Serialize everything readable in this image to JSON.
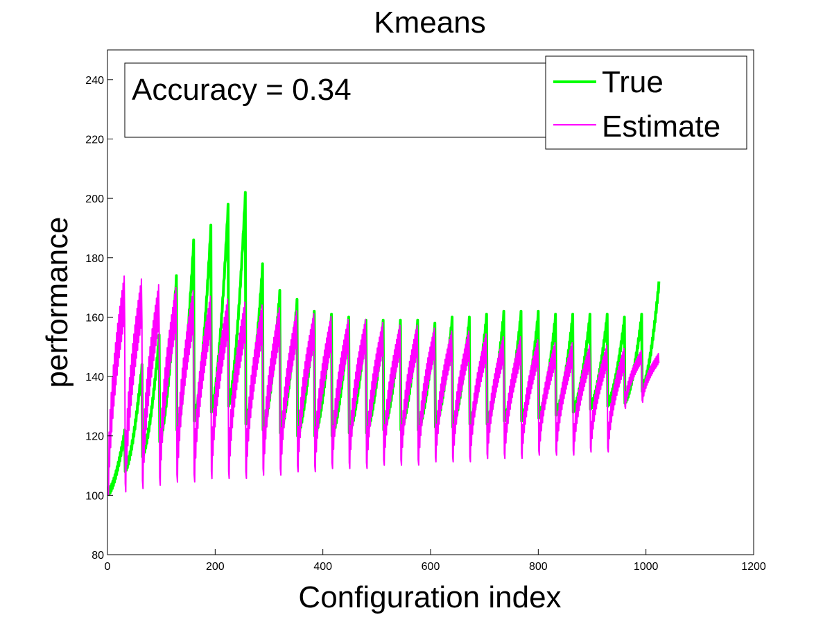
{
  "chart_data": {
    "type": "line",
    "title": "Kmeans",
    "xlabel": "Configuration index",
    "ylabel": "performance",
    "xlim": [
      0,
      1200
    ],
    "ylim": [
      80,
      250
    ],
    "xticks": [
      0,
      200,
      400,
      600,
      800,
      1000,
      1200
    ],
    "yticks": [
      80,
      100,
      120,
      140,
      160,
      180,
      200,
      220,
      240
    ],
    "grid": false,
    "legend_position": "top-right",
    "annotation": "Accuracy = 0.34",
    "n_points": 1024,
    "block_size": 32,
    "series": [
      {
        "name": "True",
        "color": "#00ff00",
        "block_peaks": [
          120,
          142,
          152,
          172,
          184,
          189,
          196,
          200,
          176,
          167,
          164,
          160,
          159,
          158,
          157,
          157,
          157,
          157,
          156,
          158,
          158,
          159,
          160,
          160,
          160,
          159,
          159,
          159,
          159,
          158,
          159,
          170
        ],
        "block_troughs": [
          100,
          108,
          113,
          118,
          122,
          125,
          128,
          130,
          124,
          122,
          121,
          120,
          120,
          120,
          121,
          121,
          122,
          122,
          122,
          123,
          123,
          124,
          124,
          125,
          125,
          126,
          127,
          128,
          129,
          130,
          131,
          135
        ]
      },
      {
        "name": "Estimate",
        "color": "#ff00ff",
        "block_peaks": [
          175,
          174,
          172,
          171,
          170,
          168,
          167,
          166,
          165,
          164,
          163,
          162,
          161,
          160,
          160,
          159,
          158,
          158,
          157,
          156,
          156,
          155,
          154,
          154,
          153,
          152,
          152,
          151,
          151,
          150,
          149,
          148
        ],
        "block_troughs": [
          103,
          104,
          105,
          106,
          107,
          107,
          108,
          108,
          108,
          109,
          109,
          110,
          110,
          111,
          111,
          111,
          112,
          112,
          112,
          113,
          113,
          113,
          114,
          114,
          114,
          115,
          115,
          115,
          116,
          116,
          130,
          132
        ]
      }
    ]
  }
}
